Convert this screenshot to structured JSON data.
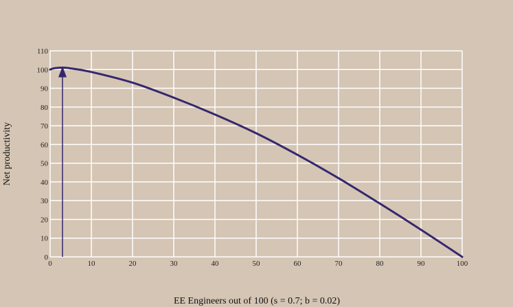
{
  "chart_data": {
    "type": "line",
    "title": "",
    "xlabel": "EE Engineers out of 100 (s = 0.7; b = 0.02)",
    "ylabel": "Net productivity",
    "xlim": [
      0,
      100
    ],
    "ylim": [
      0,
      110
    ],
    "x_ticks": [
      0,
      10,
      20,
      30,
      40,
      50,
      60,
      70,
      80,
      90,
      100
    ],
    "y_ticks": [
      0,
      10,
      20,
      30,
      40,
      50,
      60,
      70,
      80,
      90,
      100,
      110
    ],
    "grid": true,
    "series": [
      {
        "x": [
          0,
          1,
          3,
          5,
          10,
          20,
          30,
          40,
          50,
          60,
          70,
          80,
          90,
          100
        ],
        "y": [
          100,
          100.7,
          101,
          100.6,
          98.7,
          93,
          85,
          76,
          66,
          54.5,
          42,
          28.5,
          14.5,
          0
        ]
      }
    ],
    "annotations": [
      {
        "type": "arrow",
        "x": 3,
        "y_from": 0,
        "y_to": 101
      }
    ],
    "colors": {
      "background": "#d5c5b4",
      "line": "#35276e",
      "grid": "#ffffff",
      "axis": "#ffffff"
    }
  }
}
